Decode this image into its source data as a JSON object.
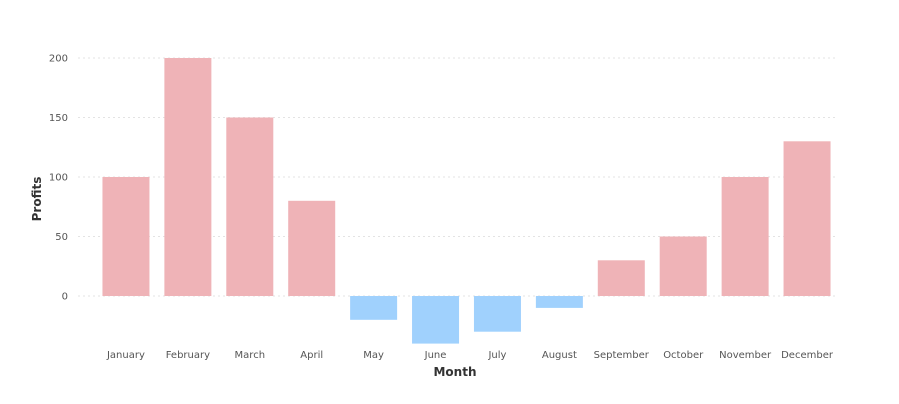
{
  "chart_data": {
    "type": "bar",
    "title": "",
    "xlabel": "Month",
    "ylabel": "Profits",
    "categories": [
      "January",
      "February",
      "March",
      "April",
      "May",
      "June",
      "July",
      "August",
      "September",
      "October",
      "November",
      "December"
    ],
    "values": [
      100,
      200,
      150,
      80,
      -20,
      -40,
      -30,
      -10,
      30,
      50,
      100,
      130
    ],
    "ylim": [
      -40,
      200
    ],
    "yticks": [
      0,
      50,
      100,
      150,
      200
    ],
    "grid": true,
    "legend": "none",
    "colors": {
      "positive": "#efb3b7",
      "negative": "#a0d1fd"
    }
  }
}
